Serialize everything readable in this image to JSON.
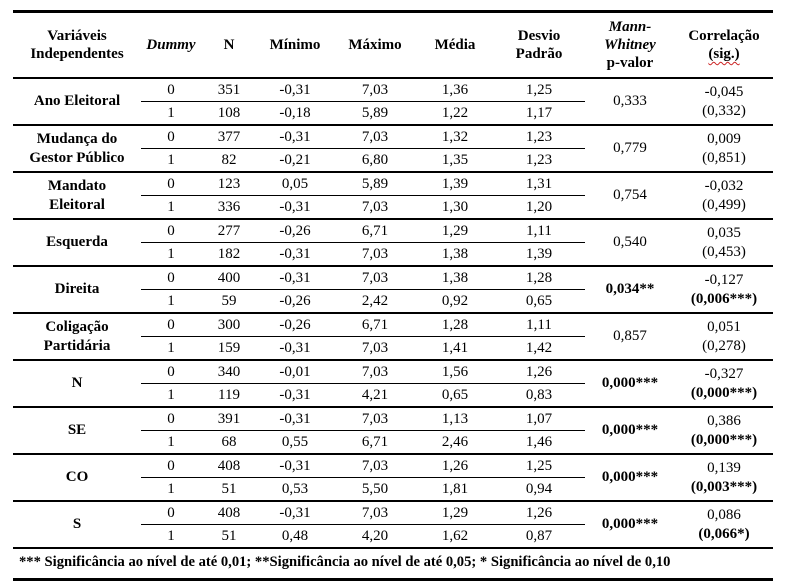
{
  "colors": {
    "spellcheck_underline": "#cc2222",
    "border": "#000000",
    "background": "#ffffff"
  },
  "table": {
    "columns": {
      "variaveis": "Variáveis Independentes",
      "dummy": "Dummy",
      "n": "N",
      "minimo": "Mínimo",
      "maximo": "Máximo",
      "media": "Média",
      "desvio": "Desvio Padrão",
      "mann_whitney_line1": "Mann-Whitney",
      "mann_whitney_line2": "p-valor",
      "correlacao_line1": "Correlação",
      "correlacao_line2": "(sig.)"
    },
    "groups": [
      {
        "variable": "Ano Eleitoral",
        "rows": [
          [
            "0",
            "351",
            "-0,31",
            "7,03",
            "1,36",
            "1,25"
          ],
          [
            "1",
            "108",
            "-0,18",
            "5,89",
            "1,22",
            "1,17"
          ]
        ],
        "mann_whitney": "0,333",
        "correlacao": "-0,045",
        "sig": "(0,332)"
      },
      {
        "variable": "Mudança do Gestor Público",
        "rows": [
          [
            "0",
            "377",
            "-0,31",
            "7,03",
            "1,32",
            "1,23"
          ],
          [
            "1",
            "82",
            "-0,21",
            "6,80",
            "1,35",
            "1,23"
          ]
        ],
        "mann_whitney": "0,779",
        "correlacao": "0,009",
        "sig": "(0,851)"
      },
      {
        "variable": "Mandato Eleitoral",
        "rows": [
          [
            "0",
            "123",
            "0,05",
            "5,89",
            "1,39",
            "1,31"
          ],
          [
            "1",
            "336",
            "-0,31",
            "7,03",
            "1,30",
            "1,20"
          ]
        ],
        "mann_whitney": "0,754",
        "correlacao": "-0,032",
        "sig": "(0,499)"
      },
      {
        "variable": "Esquerda",
        "rows": [
          [
            "0",
            "277",
            "-0,26",
            "6,71",
            "1,29",
            "1,11"
          ],
          [
            "1",
            "182",
            "-0,31",
            "7,03",
            "1,38",
            "1,39"
          ]
        ],
        "mann_whitney": "0,540",
        "correlacao": "0,035",
        "sig": "(0,453)"
      },
      {
        "variable": "Direita",
        "rows": [
          [
            "0",
            "400",
            "-0,31",
            "7,03",
            "1,38",
            "1,28"
          ],
          [
            "1",
            "59",
            "-0,26",
            "2,42",
            "0,92",
            "0,65"
          ]
        ],
        "mann_whitney": "0,034**",
        "correlacao": "-0,127",
        "sig": "(0,006***)"
      },
      {
        "variable": "Coligação Partidária",
        "rows": [
          [
            "0",
            "300",
            "-0,26",
            "6,71",
            "1,28",
            "1,11"
          ],
          [
            "1",
            "159",
            "-0,31",
            "7,03",
            "1,41",
            "1,42"
          ]
        ],
        "mann_whitney": "0,857",
        "correlacao": "0,051",
        "sig": "(0,278)"
      },
      {
        "variable": "N",
        "rows": [
          [
            "0",
            "340",
            "-0,01",
            "7,03",
            "1,56",
            "1,26"
          ],
          [
            "1",
            "119",
            "-0,31",
            "4,21",
            "0,65",
            "0,83"
          ]
        ],
        "mann_whitney": "0,000***",
        "correlacao": "-0,327",
        "sig": "(0,000***)"
      },
      {
        "variable": "SE",
        "rows": [
          [
            "0",
            "391",
            "-0,31",
            "7,03",
            "1,13",
            "1,07"
          ],
          [
            "1",
            "68",
            "0,55",
            "6,71",
            "2,46",
            "1,46"
          ]
        ],
        "mann_whitney": "0,000***",
        "correlacao": "0,386",
        "sig": "(0,000***)"
      },
      {
        "variable": "CO",
        "rows": [
          [
            "0",
            "408",
            "-0,31",
            "7,03",
            "1,26",
            "1,25"
          ],
          [
            "1",
            "51",
            "0,53",
            "5,50",
            "1,81",
            "0,94"
          ]
        ],
        "mann_whitney": "0,000***",
        "correlacao": "0,139",
        "sig": "(0,003***)"
      },
      {
        "variable": "S",
        "rows": [
          [
            "0",
            "408",
            "-0,31",
            "7,03",
            "1,29",
            "1,26"
          ],
          [
            "1",
            "51",
            "0,48",
            "4,20",
            "1,62",
            "0,87"
          ]
        ],
        "mann_whitney": "0,000***",
        "correlacao": "0,086",
        "sig": "(0,066*)"
      }
    ],
    "footnote": "*** Significância ao nível de até 0,01; **Significância ao nível de até 0,05; * Significância ao nível de 0,10"
  }
}
